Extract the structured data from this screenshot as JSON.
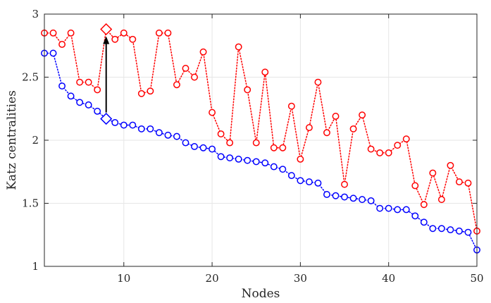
{
  "chart_data": {
    "type": "line",
    "xlabel": "Nodes",
    "ylabel": "Katz centralities",
    "xlim": [
      1,
      50
    ],
    "ylim": [
      1,
      3
    ],
    "xticks": [
      10,
      20,
      30,
      40,
      50
    ],
    "yticks": [
      1,
      1.5,
      2,
      2.5,
      3
    ],
    "ytick_labels": [
      "1",
      "1.5",
      "2",
      "2.5",
      "3"
    ],
    "grid": true,
    "series": [
      {
        "color": "#0000ff",
        "marker": "circle",
        "line_style": "dotted",
        "x": [
          1,
          2,
          3,
          4,
          5,
          6,
          7,
          8,
          9,
          10,
          11,
          12,
          13,
          14,
          15,
          16,
          17,
          18,
          19,
          20,
          21,
          22,
          23,
          24,
          25,
          26,
          27,
          28,
          29,
          30,
          31,
          32,
          33,
          34,
          35,
          36,
          37,
          38,
          39,
          40,
          41,
          42,
          43,
          44,
          45,
          46,
          47,
          48,
          49,
          50
        ],
        "values": [
          2.69,
          2.69,
          2.43,
          2.35,
          2.3,
          2.28,
          2.23,
          2.17,
          2.14,
          2.12,
          2.12,
          2.09,
          2.09,
          2.06,
          2.04,
          2.03,
          1.98,
          1.95,
          1.94,
          1.93,
          1.87,
          1.86,
          1.85,
          1.84,
          1.83,
          1.82,
          1.79,
          1.77,
          1.72,
          1.68,
          1.67,
          1.66,
          1.57,
          1.56,
          1.55,
          1.54,
          1.53,
          1.52,
          1.46,
          1.46,
          1.45,
          1.45,
          1.4,
          1.35,
          1.3,
          1.3,
          1.29,
          1.28,
          1.27,
          1.13
        ]
      },
      {
        "color": "#ff0000",
        "marker": "circle",
        "line_style": "dotted",
        "x": [
          1,
          2,
          3,
          4,
          5,
          6,
          7,
          8,
          9,
          10,
          11,
          12,
          13,
          14,
          15,
          16,
          17,
          18,
          19,
          20,
          21,
          22,
          23,
          24,
          25,
          26,
          27,
          28,
          29,
          30,
          31,
          32,
          33,
          34,
          35,
          36,
          37,
          38,
          39,
          40,
          41,
          42,
          43,
          44,
          45,
          46,
          47,
          48,
          49,
          50
        ],
        "values": [
          2.85,
          2.85,
          2.76,
          2.85,
          2.46,
          2.46,
          2.4,
          2.88,
          2.8,
          2.85,
          2.8,
          2.37,
          2.39,
          2.85,
          2.85,
          2.44,
          2.57,
          2.5,
          2.7,
          2.22,
          2.05,
          1.98,
          2.74,
          2.4,
          1.98,
          2.54,
          1.94,
          1.94,
          2.27,
          1.85,
          2.1,
          2.46,
          2.06,
          2.19,
          1.65,
          2.09,
          2.2,
          1.93,
          1.9,
          1.9,
          1.96,
          2.01,
          1.64,
          1.49,
          1.74,
          1.53,
          1.8,
          1.67,
          1.66,
          1.28
        ]
      }
    ],
    "highlight": {
      "x": 8,
      "from": 2.17,
      "to": 2.88,
      "marker": "diamond",
      "arrow_color": "#000000"
    }
  }
}
